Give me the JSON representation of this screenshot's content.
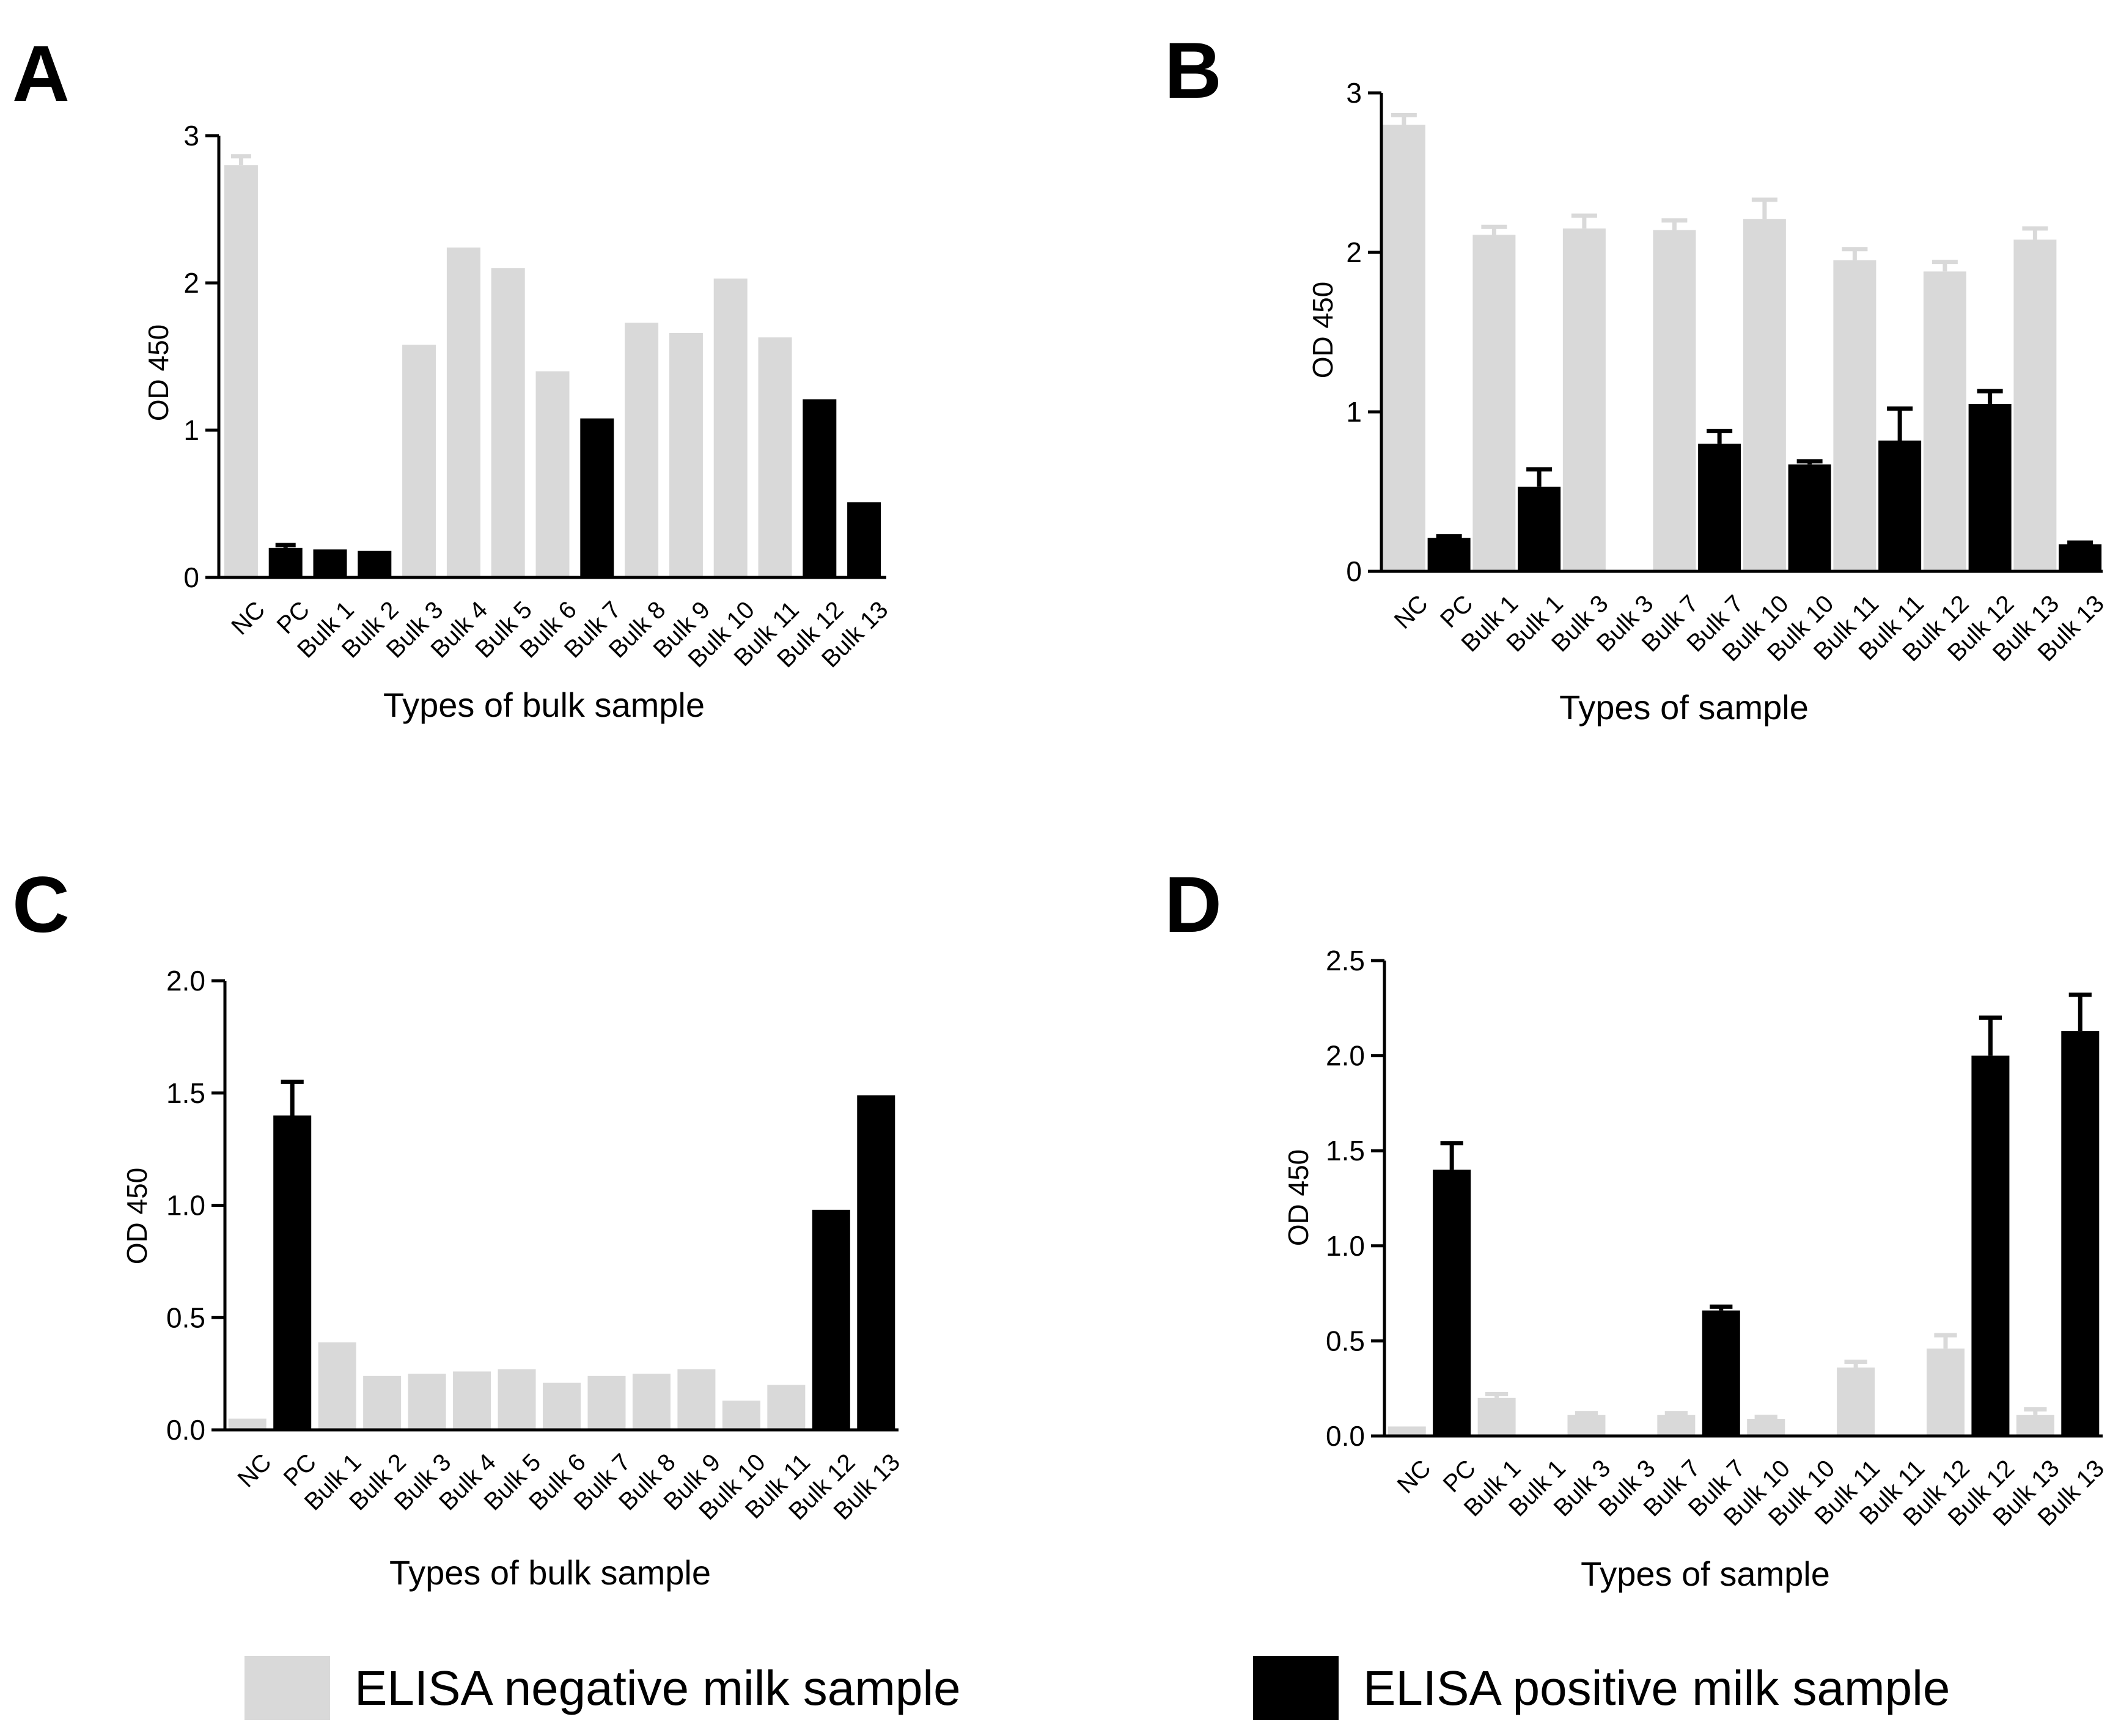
{
  "colors": {
    "negative": "#d9d9d9",
    "positive": "#000000",
    "axis": "#000000"
  },
  "legend": {
    "negative_label": "ELISA negative milk sample",
    "positive_label": "ELISA positive milk sample"
  },
  "chart_data": [
    {
      "panel": "A",
      "type": "bar",
      "title": "",
      "xlabel": "Types of bulk sample",
      "ylabel": "OD 450",
      "ylim": [
        0,
        3
      ],
      "yticks": [
        "0",
        "1",
        "2",
        "3"
      ],
      "categories": [
        "NC",
        "PC",
        "Bulk 1",
        "Bulk 2",
        "Bulk 3",
        "Bulk 4",
        "Bulk 5",
        "Bulk 6",
        "Bulk 7",
        "Bulk 8",
        "Bulk 9",
        "Bulk 10",
        "Bulk 11",
        "Bulk 12",
        "Bulk 13"
      ],
      "values": [
        2.8,
        0.2,
        0.19,
        0.18,
        1.58,
        2.24,
        2.1,
        1.4,
        1.08,
        1.73,
        1.66,
        2.03,
        1.63,
        1.21,
        0.51
      ],
      "errors": [
        0.06,
        0.02,
        0,
        0,
        0,
        0,
        0,
        0,
        0,
        0,
        0,
        0,
        0,
        0,
        0
      ],
      "status": [
        "negative",
        "positive",
        "positive",
        "positive",
        "negative",
        "negative",
        "negative",
        "negative",
        "positive",
        "negative",
        "negative",
        "negative",
        "negative",
        "positive",
        "positive"
      ]
    },
    {
      "panel": "B",
      "type": "bar",
      "title": "",
      "xlabel": "Types of sample",
      "ylabel": "OD 450",
      "ylim": [
        0,
        3
      ],
      "yticks": [
        "0",
        "1",
        "2",
        "3"
      ],
      "categories": [
        "NC",
        "PC",
        "Bulk 1",
        "Bulk 1",
        "Bulk 3",
        "Bulk 3",
        "Bulk 7",
        "Bulk 7",
        "Bulk 10",
        "Bulk 10",
        "Bulk 11",
        "Bulk 11",
        "Bulk 12",
        "Bulk 12",
        "Bulk 13",
        "Bulk 13"
      ],
      "values": [
        2.8,
        0.21,
        2.11,
        0.53,
        2.15,
        0,
        2.14,
        0.8,
        2.21,
        0.67,
        1.95,
        0.82,
        1.88,
        1.05,
        2.08,
        0.17
      ],
      "errors": [
        0.06,
        0.01,
        0.05,
        0.11,
        0.08,
        0,
        0.06,
        0.08,
        0.12,
        0.02,
        0.07,
        0.2,
        0.06,
        0.08,
        0.07,
        0.01
      ],
      "status": [
        "negative",
        "positive",
        "negative",
        "positive",
        "negative",
        "positive",
        "negative",
        "positive",
        "negative",
        "positive",
        "negative",
        "positive",
        "negative",
        "positive",
        "negative",
        "positive"
      ]
    },
    {
      "panel": "C",
      "type": "bar",
      "title": "",
      "xlabel": "Types of bulk sample",
      "ylabel": "OD 450",
      "ylim": [
        0,
        2
      ],
      "yticks": [
        "0.0",
        "0.5",
        "1.0",
        "1.5",
        "2.0"
      ],
      "categories": [
        "NC",
        "PC",
        "Bulk 1",
        "Bulk 2",
        "Bulk 3",
        "Bulk 4",
        "Bulk 5",
        "Bulk 6",
        "Bulk 7",
        "Bulk 8",
        "Bulk 9",
        "Bulk 10",
        "Bulk 11",
        "Bulk 12",
        "Bulk 13"
      ],
      "values": [
        0.05,
        1.4,
        0.39,
        0.24,
        0.25,
        0.26,
        0.27,
        0.21,
        0.24,
        0.25,
        0.27,
        0.13,
        0.2,
        0.98,
        1.49
      ],
      "errors": [
        0,
        0.15,
        0,
        0,
        0,
        0,
        0,
        0,
        0,
        0,
        0,
        0,
        0,
        0,
        0
      ],
      "status": [
        "negative",
        "positive",
        "negative",
        "negative",
        "negative",
        "negative",
        "negative",
        "negative",
        "negative",
        "negative",
        "negative",
        "negative",
        "negative",
        "positive",
        "positive"
      ]
    },
    {
      "panel": "D",
      "type": "bar",
      "title": "",
      "xlabel": "Types of sample",
      "ylabel": "OD 450",
      "ylim": [
        0,
        2.5
      ],
      "yticks": [
        "0.0",
        "0.5",
        "1.0",
        "1.5",
        "2.0",
        "2.5"
      ],
      "categories": [
        "NC",
        "PC",
        "Bulk 1",
        "Bulk 1",
        "Bulk 3",
        "Bulk 3",
        "Bulk 7",
        "Bulk 7",
        "Bulk 10",
        "Bulk 10",
        "Bulk 11",
        "Bulk 11",
        "Bulk 12",
        "Bulk 12",
        "Bulk 13",
        "Bulk 13"
      ],
      "values": [
        0.05,
        1.4,
        0.2,
        0,
        0.11,
        0,
        0.11,
        0.66,
        0.09,
        0,
        0.36,
        0,
        0.46,
        2.0,
        0.11,
        2.13
      ],
      "errors": [
        0,
        0.14,
        0.02,
        0,
        0.01,
        0,
        0.01,
        0.02,
        0.01,
        0,
        0.03,
        0,
        0.07,
        0.2,
        0.03,
        0.19
      ],
      "status": [
        "negative",
        "positive",
        "negative",
        "positive",
        "negative",
        "positive",
        "negative",
        "positive",
        "negative",
        "positive",
        "negative",
        "positive",
        "negative",
        "positive",
        "negative",
        "positive"
      ]
    }
  ]
}
